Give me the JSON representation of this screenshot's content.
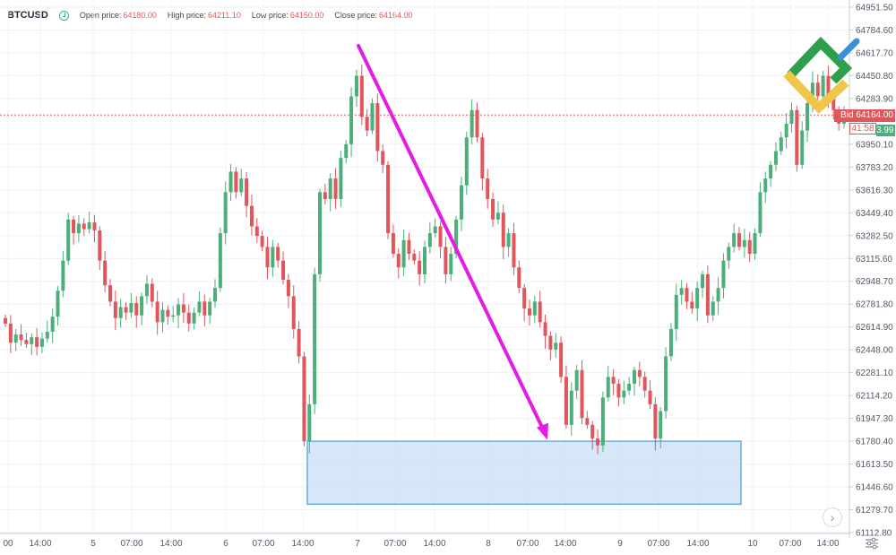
{
  "header": {
    "symbol": "BTCUSD",
    "open_label": "Open price:",
    "open_value": "64180.00",
    "high_label": "High price:",
    "high_value": "64211.10",
    "low_label": "Low price:",
    "low_value": "64150.00",
    "close_label": "Close price:",
    "close_value": "64164.00"
  },
  "price_tags": {
    "bid": "Bid 64164.00",
    "timer": "41:58",
    "green": "3.99"
  },
  "colors": {
    "up": "#4caf7a",
    "down": "#e0565b",
    "arrow": "#e21ee3",
    "zone_fill": "#cfe3f7",
    "zone_stroke": "#6aaee0"
  },
  "chart_data": {
    "type": "candlestick",
    "title": "",
    "xlabel": "",
    "ylabel": "",
    "ylim": [
      61112.8,
      64951.5
    ],
    "grid": true,
    "y_ticks": [
      "64951.50",
      "64784.60",
      "64617.70",
      "64450.80",
      "64283.90",
      "63950.10",
      "63783.20",
      "63616.30",
      "63449.40",
      "63282.50",
      "63115.60",
      "62948.70",
      "62781.80",
      "62614.90",
      "62448.00",
      "62281.10",
      "62114.20",
      "61947.30",
      "61780.40",
      "61613.50",
      "61446.60",
      "61279.70",
      "61112.80"
    ],
    "x_ticks": [
      "00",
      "14:00",
      "5",
      "07:00",
      "14:00",
      "6",
      "07:00",
      "14:00",
      "7",
      "07:00",
      "14:00",
      "8",
      "07:00",
      "14:00",
      "9",
      "07:00",
      "14:00",
      "10",
      "07:00",
      "14:00"
    ],
    "current_price": 64164.0,
    "annotations": [
      {
        "type": "arrow",
        "from_price": 64670,
        "to_price": 61790
      },
      {
        "type": "support_zone",
        "top_price": 61780,
        "bottom_price": 61320
      }
    ],
    "candles_close": [
      62640,
      62500,
      62560,
      62520,
      62490,
      62540,
      62470,
      62530,
      62580,
      62690,
      62880,
      63100,
      63400,
      63300,
      63370,
      63330,
      63380,
      63320,
      63100,
      62920,
      62800,
      62680,
      62760,
      62720,
      62790,
      62700,
      62840,
      62930,
      62800,
      62650,
      62740,
      62690,
      62700,
      62780,
      62720,
      62640,
      62720,
      62800,
      62700,
      62800,
      62900,
      63300,
      63600,
      63750,
      63600,
      63700,
      63500,
      63350,
      63280,
      63200,
      63050,
      63200,
      63100,
      62960,
      62840,
      62600,
      62400,
      61780,
      62050,
      63000,
      63600,
      63550,
      63700,
      63550,
      63850,
      63950,
      64300,
      64450,
      64150,
      64050,
      64250,
      63900,
      63800,
      63300,
      63150,
      63050,
      63250,
      63150,
      63100,
      63000,
      63200,
      63300,
      63350,
      63200,
      63000,
      63150,
      63400,
      63650,
      64000,
      64200,
      64000,
      63700,
      63550,
      63400,
      63450,
      63200,
      63300,
      63050,
      62900,
      62750,
      62700,
      62800,
      62650,
      62550,
      62450,
      62500,
      62250,
      61900,
      62150,
      62300,
      61950,
      61900,
      61800,
      61750,
      62100,
      62250,
      62200,
      62100,
      62150,
      62200,
      62300,
      62250,
      62150,
      62050,
      61800,
      62000,
      62400,
      62600,
      62850,
      62900,
      62800,
      62750,
      62900,
      63000,
      62700,
      62800,
      62900,
      63100,
      63200,
      63300,
      63200,
      63250,
      63150,
      63300,
      63600,
      63700,
      63800,
      63900,
      64000,
      64100,
      64200,
      63800,
      64050,
      64250,
      64400,
      64300,
      64450,
      64300,
      64200,
      64100,
      64164
    ]
  }
}
